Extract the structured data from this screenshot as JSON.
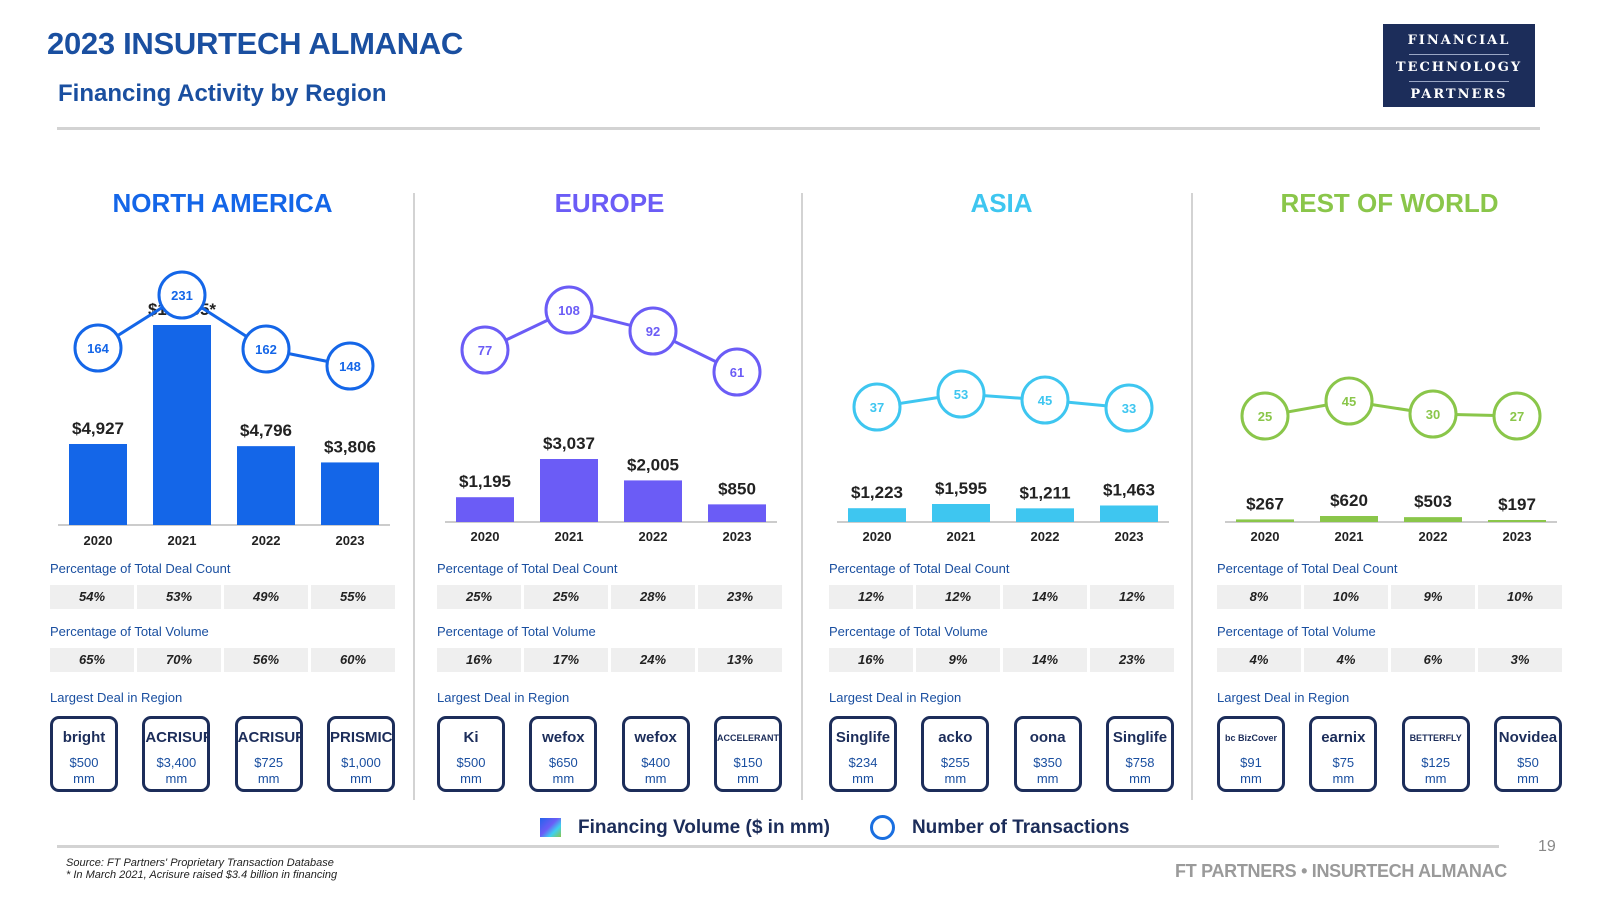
{
  "header": {
    "title": "2023 INSURTECH ALMANAC",
    "subtitle": "Financing Activity by Region",
    "logo": [
      "FINANCIAL",
      "TECHNOLOGY",
      "PARTNERS"
    ]
  },
  "labels": {
    "deal_count": "Percentage of Total Deal Count",
    "volume": "Percentage of Total Volume",
    "largest_deal": "Largest Deal in Region"
  },
  "chart_data": [
    {
      "type": "bar",
      "region": "NORTH AMERICA",
      "color": "#1466e8",
      "categories": [
        "2020",
        "2021",
        "2022",
        "2023"
      ],
      "series": [
        {
          "name": "Financing Volume ($ in mm)",
          "values": [
            4927,
            12165,
            4796,
            3806
          ],
          "labels": [
            "$4,927",
            "$12,165*",
            "$4,796",
            "$3,806"
          ]
        },
        {
          "name": "Number of Transactions",
          "values": [
            164,
            231,
            162,
            148
          ]
        }
      ],
      "deal_count_pct": [
        "54%",
        "53%",
        "49%",
        "55%"
      ],
      "volume_pct": [
        "65%",
        "70%",
        "56%",
        "60%"
      ],
      "largest_deals": [
        {
          "name": "bright",
          "amount": "$500",
          "unit": "mm"
        },
        {
          "name": "ACRISURE",
          "amount": "$3,400",
          "unit": "mm"
        },
        {
          "name": "ACRISURE",
          "amount": "$725",
          "unit": "mm"
        },
        {
          "name": "PRISMIC",
          "amount": "$1,000",
          "unit": "mm"
        }
      ]
    },
    {
      "type": "bar",
      "region": "EUROPE",
      "color": "#6b5cf6",
      "categories": [
        "2020",
        "2021",
        "2022",
        "2023"
      ],
      "series": [
        {
          "name": "Financing Volume ($ in mm)",
          "values": [
            1195,
            3037,
            2005,
            850
          ],
          "labels": [
            "$1,195",
            "$3,037",
            "$2,005",
            "$850"
          ]
        },
        {
          "name": "Number of Transactions",
          "values": [
            77,
            108,
            92,
            61
          ]
        }
      ],
      "deal_count_pct": [
        "25%",
        "25%",
        "28%",
        "23%"
      ],
      "volume_pct": [
        "16%",
        "17%",
        "24%",
        "13%"
      ],
      "largest_deals": [
        {
          "name": "Ki",
          "amount": "$500",
          "unit": "mm"
        },
        {
          "name": "wefox",
          "amount": "$650",
          "unit": "mm"
        },
        {
          "name": "wefox",
          "amount": "$400",
          "unit": "mm"
        },
        {
          "name": "ACCELERANT",
          "amount": "$150",
          "unit": "mm"
        }
      ]
    },
    {
      "type": "bar",
      "region": "ASIA",
      "color": "#3ec6f0",
      "categories": [
        "2020",
        "2021",
        "2022",
        "2023"
      ],
      "series": [
        {
          "name": "Financing Volume ($ in mm)",
          "values": [
            1223,
            1595,
            1211,
            1463
          ],
          "labels": [
            "$1,223",
            "$1,595",
            "$1,211",
            "$1,463"
          ]
        },
        {
          "name": "Number of Transactions",
          "values": [
            37,
            53,
            45,
            33
          ]
        }
      ],
      "deal_count_pct": [
        "12%",
        "12%",
        "14%",
        "12%"
      ],
      "volume_pct": [
        "16%",
        "9%",
        "14%",
        "23%"
      ],
      "largest_deals": [
        {
          "name": "Singlife",
          "amount": "$234",
          "unit": "mm"
        },
        {
          "name": "acko",
          "amount": "$255",
          "unit": "mm"
        },
        {
          "name": "oona",
          "amount": "$350",
          "unit": "mm"
        },
        {
          "name": "Singlife",
          "amount": "$758",
          "unit": "mm"
        }
      ]
    },
    {
      "type": "bar",
      "region": "REST OF WORLD",
      "color": "#8ac64a",
      "categories": [
        "2020",
        "2021",
        "2022",
        "2023"
      ],
      "series": [
        {
          "name": "Financing Volume ($ in mm)",
          "values": [
            267,
            620,
            503,
            197
          ],
          "labels": [
            "$267",
            "$620",
            "$503",
            "$197"
          ]
        },
        {
          "name": "Number of Transactions",
          "values": [
            25,
            45,
            30,
            27
          ]
        }
      ],
      "deal_count_pct": [
        "8%",
        "10%",
        "9%",
        "10%"
      ],
      "volume_pct": [
        "4%",
        "4%",
        "6%",
        "3%"
      ],
      "largest_deals": [
        {
          "name": "bc BizCover",
          "amount": "$91",
          "unit": "mm"
        },
        {
          "name": "earnix",
          "amount": "$75",
          "unit": "mm"
        },
        {
          "name": "BETTERFLY",
          "amount": "$125",
          "unit": "mm"
        },
        {
          "name": "Novidea",
          "amount": "$50",
          "unit": "mm"
        }
      ]
    }
  ],
  "legend": {
    "volume": "Financing Volume ($ in mm)",
    "transactions": "Number of Transactions"
  },
  "footer": {
    "page_number": "19",
    "source_line1": "Source: FT Partners' Proprietary Transaction Database",
    "source_line2": "* In March 2021, Acrisure raised $3.4 billion in financing",
    "brand": "FT PARTNERS • INSURTECH ALMANAC"
  }
}
